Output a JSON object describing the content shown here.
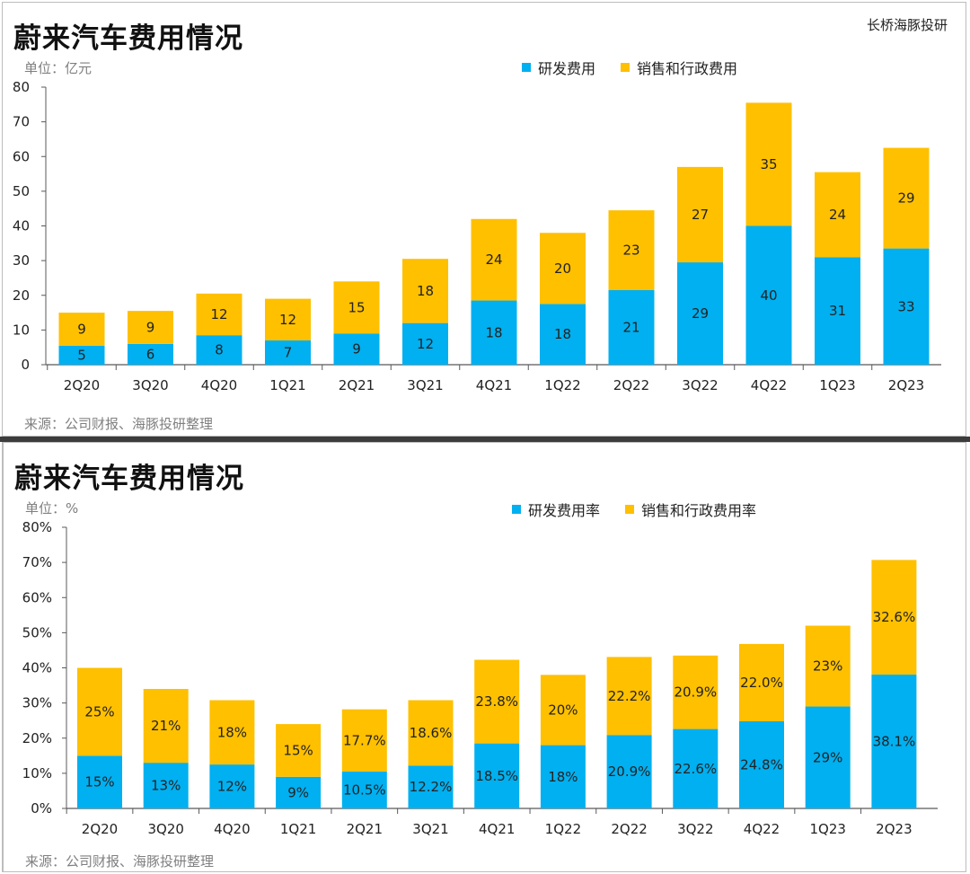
{
  "brand": "长桥海豚投研",
  "colors": {
    "rd": "#00B0F0",
    "sga": "#FFC000",
    "axis": "#595959",
    "text": "#222222"
  },
  "chart_data": [
    {
      "type": "bar",
      "stacked": true,
      "title": "蔚来汽车费用情况",
      "unit_label": "单位：亿元",
      "source": "来源：公司财报、海豚投研整理",
      "categories": [
        "2Q20",
        "3Q20",
        "4Q20",
        "1Q21",
        "2Q21",
        "3Q21",
        "4Q21",
        "1Q22",
        "2Q22",
        "3Q22",
        "4Q22",
        "1Q23",
        "2Q23"
      ],
      "ylim": [
        0,
        80
      ],
      "yticks": [
        "0",
        "10",
        "20",
        "30",
        "40",
        "50",
        "60",
        "70",
        "80"
      ],
      "legend_position": "top-right",
      "grid": false,
      "series": [
        {
          "name": "研发费用",
          "values": [
            5.5,
            6,
            8.5,
            7,
            9,
            12,
            18.5,
            17.5,
            21.5,
            29.5,
            40,
            31,
            33.5
          ],
          "labels": [
            "5",
            "6",
            "8",
            "7",
            "9",
            "12",
            "18",
            "18",
            "21",
            "29",
            "40",
            "31",
            "33"
          ]
        },
        {
          "name": "销售和行政费用",
          "values": [
            9.5,
            9.5,
            12,
            12,
            15,
            18.5,
            23.5,
            20.5,
            23,
            27.5,
            35.5,
            24.5,
            29
          ],
          "labels": [
            "9",
            "9",
            "12",
            "12",
            "15",
            "18",
            "24",
            "20",
            "23",
            "27",
            "35",
            "24",
            "29"
          ]
        }
      ]
    },
    {
      "type": "bar",
      "stacked": true,
      "title": "蔚来汽车费用情况",
      "unit_label": "单位：%",
      "source": "来源：公司财报、海豚投研整理",
      "categories": [
        "2Q20",
        "3Q20",
        "4Q20",
        "1Q21",
        "2Q21",
        "3Q21",
        "4Q21",
        "1Q22",
        "2Q22",
        "3Q22",
        "4Q22",
        "1Q23",
        "2Q23"
      ],
      "ylim": [
        0,
        80
      ],
      "yticks": [
        "0%",
        "10%",
        "20%",
        "30%",
        "40%",
        "50%",
        "60%",
        "70%",
        "80%"
      ],
      "legend_position": "top-right",
      "grid": false,
      "series": [
        {
          "name": "研发费用率",
          "values": [
            15,
            13,
            12.5,
            9,
            10.5,
            12.2,
            18.5,
            18,
            20.9,
            22.6,
            24.8,
            29,
            38.1
          ],
          "labels": [
            "15%",
            "13%",
            "12%",
            "9%",
            "10.5%",
            "12.2%",
            "18.5%",
            "18%",
            "20.9%",
            "22.6%",
            "24.8%",
            "29%",
            "38.1%"
          ]
        },
        {
          "name": "销售和行政费用率",
          "values": [
            25,
            21,
            18.3,
            15,
            17.7,
            18.6,
            23.8,
            20,
            22.2,
            20.9,
            22,
            23,
            32.6
          ],
          "labels": [
            "25%",
            "21%",
            "18%",
            "15%",
            "17.7%",
            "18.6%",
            "23.8%",
            "20%",
            "22.2%",
            "20.9%",
            "22.0%",
            "23%",
            "32.6%"
          ]
        }
      ]
    }
  ]
}
